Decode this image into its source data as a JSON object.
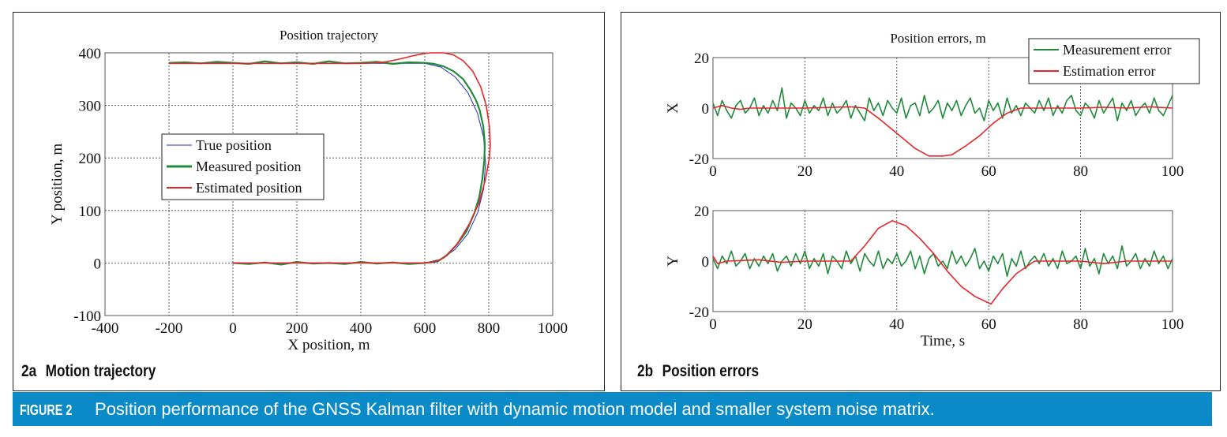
{
  "caption": {
    "figure_label": "FIGURE 2",
    "text": "Position performance of the GNSS Kalman filter with dynamic motion model and smaller system noise matrix."
  },
  "panel_a": {
    "label_num": "2a",
    "label_text": "Motion trajectory"
  },
  "panel_b": {
    "label_num": "2b",
    "label_text": "Position errors"
  },
  "chart_data": [
    {
      "type": "line",
      "title": "Position trajectory",
      "xlabel": "X position, m",
      "ylabel": "Y position, m",
      "xlim": [
        -400,
        1000
      ],
      "ylim": [
        -100,
        400
      ],
      "xticks": [
        "-400",
        "-200",
        "0",
        "200",
        "400",
        "600",
        "800",
        "1000"
      ],
      "yticks": [
        "-100",
        "0",
        "100",
        "200",
        "300",
        "400"
      ],
      "grid": true,
      "legend_position": "center-left",
      "series": [
        {
          "name": "True position",
          "color": "#1f2fb0",
          "x": [
            0,
            600,
            650,
            695,
            735,
            765,
            784,
            790,
            784,
            765,
            735,
            695,
            650,
            600,
            -200
          ],
          "y": [
            0,
            0,
            7,
            26,
            56,
            95,
            141,
            190,
            239,
            285,
            324,
            354,
            373,
            380,
            380
          ]
        },
        {
          "name": "Measured position",
          "color": "#1e8a3a",
          "x": [
            0,
            50,
            100,
            150,
            200,
            250,
            300,
            350,
            400,
            450,
            500,
            550,
            600,
            640,
            670,
            700,
            730,
            755,
            770,
            780,
            786,
            788,
            783,
            772,
            760,
            742,
            720,
            690,
            660,
            630,
            600,
            550,
            500,
            450,
            400,
            350,
            300,
            250,
            200,
            150,
            100,
            50,
            0,
            -50,
            -100,
            -150,
            -200
          ],
          "y": [
            0,
            -2,
            1,
            -3,
            2,
            -1,
            0,
            -2,
            2,
            -1,
            1,
            -2,
            0,
            3,
            15,
            35,
            60,
            95,
            125,
            160,
            195,
            225,
            260,
            290,
            310,
            330,
            350,
            365,
            374,
            379,
            381,
            382,
            379,
            383,
            381,
            380,
            384,
            379,
            382,
            380,
            384,
            379,
            381,
            383,
            380,
            382,
            381
          ]
        },
        {
          "name": "Estimated position",
          "color": "#e8262a",
          "x": [
            0,
            200,
            400,
            600,
            630,
            660,
            700,
            740,
            770,
            790,
            802,
            805,
            802,
            792,
            775,
            750,
            720,
            690,
            660,
            620,
            600,
            560,
            520,
            480,
            440,
            400,
            200,
            0,
            -200
          ],
          "y": [
            0,
            0,
            0,
            0,
            2,
            10,
            35,
            75,
            115,
            160,
            200,
            225,
            260,
            300,
            335,
            365,
            385,
            396,
            400,
            400,
            399,
            394,
            388,
            383,
            381,
            380,
            380,
            380,
            380
          ]
        }
      ]
    },
    {
      "type": "line",
      "title": "Position errors, m",
      "ylabel": "X",
      "xlim": [
        0,
        100
      ],
      "ylim": [
        -20,
        20
      ],
      "xticks": [
        "0",
        "20",
        "40",
        "60",
        "80",
        "100"
      ],
      "yticks": [
        "-20",
        "0",
        "20"
      ],
      "grid": true,
      "legend_position": "top-right",
      "series": [
        {
          "name": "Measurement error",
          "color": "#1e8a3a",
          "x_step": 1,
          "values": [
            2,
            -3,
            3,
            -1,
            -4,
            1,
            3,
            -2,
            0,
            4,
            -3,
            1,
            -2,
            3,
            -1,
            8,
            -4,
            2,
            0,
            -3,
            3,
            -2,
            1,
            -1,
            4,
            -3,
            2,
            -2,
            0,
            3,
            -4,
            1,
            -2,
            -5,
            4,
            -1,
            2,
            -3,
            3,
            0,
            -2,
            4,
            -4,
            1,
            2,
            -3,
            5,
            -2,
            0,
            3,
            -4,
            2,
            -1,
            3,
            -3,
            1,
            4,
            -2,
            0,
            -5,
            3,
            -1,
            2,
            -4,
            4,
            -2,
            1,
            -3,
            2,
            0,
            -2,
            3,
            -1,
            4,
            -3,
            1,
            -2,
            3,
            5,
            -1,
            -3,
            2,
            0,
            -4,
            3,
            -2,
            1,
            4,
            -5,
            2,
            -1,
            3,
            -3,
            0,
            2,
            -2,
            4,
            -1,
            -3,
            1,
            5
          ]
        },
        {
          "name": "Estimation error",
          "color": "#e8262a",
          "x": [
            0,
            2,
            4,
            6,
            8,
            10,
            20,
            30,
            33,
            36,
            40,
            44,
            47,
            50,
            52,
            55,
            58,
            61,
            64,
            67,
            70,
            80,
            85,
            90,
            95,
            100
          ],
          "y": [
            0,
            1,
            0,
            -0.5,
            0,
            0,
            0,
            0.5,
            0,
            -4,
            -10,
            -16,
            -19,
            -19,
            -18.5,
            -15,
            -11,
            -6,
            -2,
            0,
            0,
            0,
            0.3,
            0,
            0.5,
            0
          ]
        }
      ]
    },
    {
      "type": "line",
      "ylabel": "Y",
      "xlabel": "Time, s",
      "xlim": [
        0,
        100
      ],
      "ylim": [
        -20,
        20
      ],
      "xticks": [
        "0",
        "20",
        "40",
        "60",
        "80",
        "100"
      ],
      "yticks": [
        "-20",
        "0",
        "20"
      ],
      "grid": true,
      "series": [
        {
          "name": "Measurement error",
          "color": "#1e8a3a",
          "x_step": 1,
          "values": [
            1,
            -3,
            2,
            -1,
            4,
            -2,
            0,
            3,
            -3,
            1,
            -2,
            2,
            -1,
            3,
            -4,
            0,
            2,
            -2,
            3,
            -1,
            4,
            -3,
            1,
            -2,
            3,
            -5,
            2,
            0,
            -3,
            4,
            -1,
            2,
            -4,
            3,
            0,
            -2,
            4,
            -3,
            1,
            -1,
            3,
            -2,
            0,
            4,
            -3,
            2,
            -5,
            1,
            3,
            -2,
            0,
            -3,
            4,
            -1,
            2,
            -2,
            1,
            5,
            -3,
            0,
            -4,
            2,
            -1,
            3,
            -6,
            1,
            -2,
            4,
            -3,
            0,
            2,
            -1,
            3,
            -2,
            1,
            -3,
            4,
            -1,
            0,
            2,
            -3,
            5,
            -2,
            1,
            -5,
            3,
            -1,
            2,
            -3,
            6,
            -2,
            0,
            3,
            -3,
            1,
            -2,
            4,
            -1,
            2,
            -3,
            1
          ]
        },
        {
          "name": "Estimation error",
          "color": "#e8262a",
          "x": [
            0,
            1,
            3,
            10,
            15,
            20,
            25,
            30,
            33,
            36,
            39,
            42,
            45,
            48,
            51,
            54,
            57,
            60.5,
            63,
            66,
            70,
            80,
            85,
            90,
            100
          ],
          "y": [
            2,
            -1,
            0,
            0.5,
            -0.5,
            0,
            0,
            0,
            6,
            13,
            16,
            14,
            9,
            3,
            -4,
            -10,
            -14,
            -17,
            -11,
            -5,
            0,
            0,
            -1,
            0,
            0
          ]
        }
      ]
    }
  ]
}
